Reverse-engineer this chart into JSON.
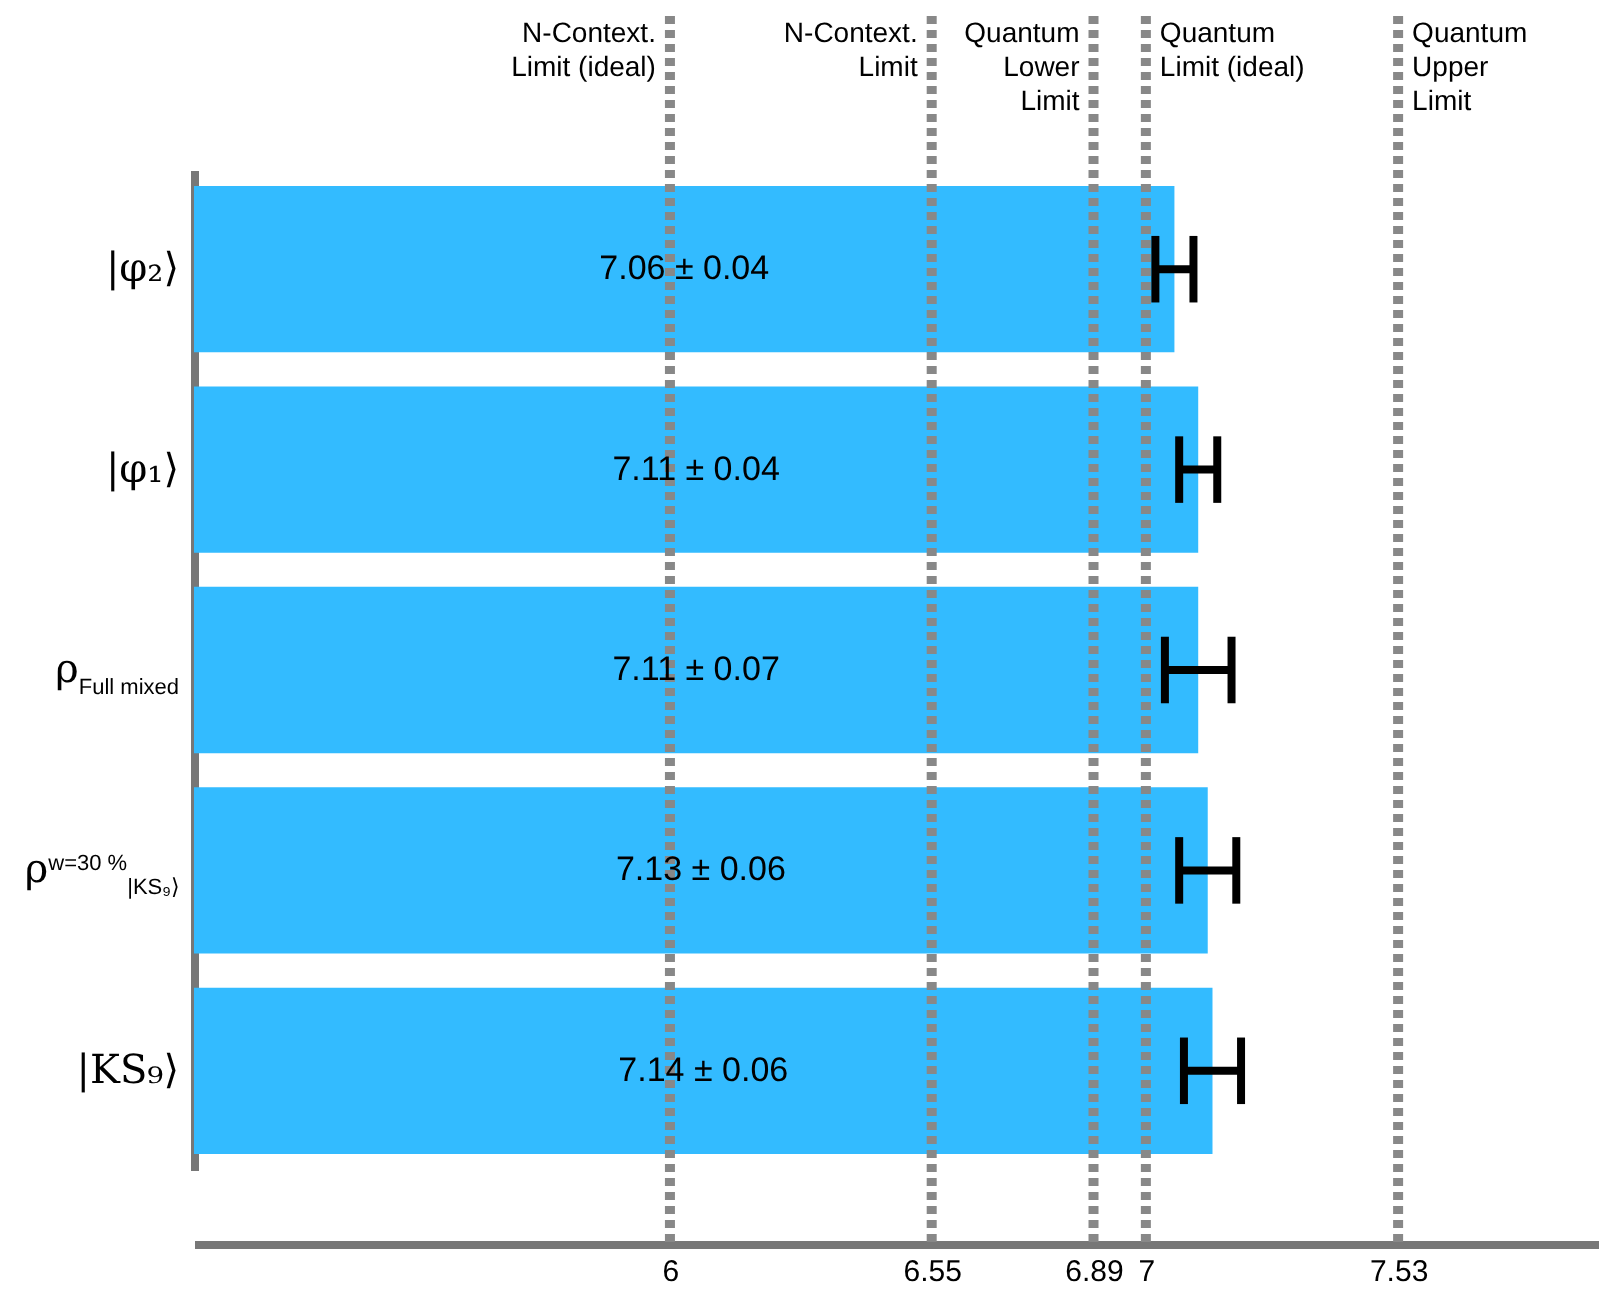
{
  "chart_data": {
    "type": "bar",
    "orientation": "horizontal",
    "categories": [
      "|φ₂⟩",
      "|φ₁⟩",
      "ρ$_{Full mixed}$",
      "ρ$^{w=30 %}$$_{|KS₉⟩}$",
      "|KS₉⟩"
    ],
    "values": [
      7.06,
      7.11,
      7.11,
      7.13,
      7.14
    ],
    "errors": [
      0.04,
      0.04,
      0.07,
      0.06,
      0.06
    ],
    "value_labels": [
      "7.06 ± 0.04",
      "7.11 ± 0.04",
      "7.11 ± 0.07",
      "7.13 ± 0.06",
      "7.14 ± 0.06"
    ],
    "color": "#33bbff",
    "xlim": [
      5,
      7.95
    ],
    "xticks": [
      6,
      6.55,
      6.89,
      7,
      7.53
    ],
    "grid": false,
    "ref_lines": [
      {
        "axis": "x",
        "value": 6,
        "label": "N-Context.\nLimit (ideal)",
        "color": "#888888",
        "line_style": "dotted"
      },
      {
        "axis": "x",
        "value": 6.55,
        "label": "N-Context.\nLimit",
        "color": "#888888",
        "line_style": "dotted"
      },
      {
        "axis": "x",
        "value": 6.89,
        "label": "Quantum\nLower\nLimit",
        "color": "#888888",
        "line_style": "dotted"
      },
      {
        "axis": "x",
        "value": 7,
        "label": "Quantum\nLimit (ideal)",
        "color": "#888888",
        "line_style": "dotted"
      },
      {
        "axis": "x",
        "value": 7.53,
        "label": "Quantum\nUpper\nLimit",
        "color": "#888888",
        "line_style": "dotted"
      }
    ]
  }
}
